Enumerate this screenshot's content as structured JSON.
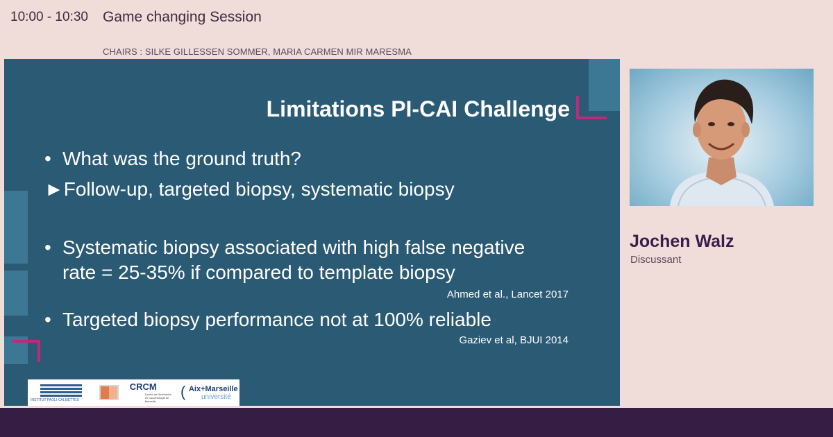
{
  "session": {
    "time": "10:00 - 10:30",
    "title": "Game changing Session",
    "chairs": "CHAIRS : SILKE GILLESSEN SOMMER, MARIA CARMEN MIR MARESMA"
  },
  "slide": {
    "title": "Limitations PI-CAI Challenge",
    "bullets": [
      {
        "marker": "•",
        "text": "What was the ground truth?"
      },
      {
        "marker": "►",
        "text": "Follow-up, targeted biopsy, systematic biopsy"
      },
      {
        "marker": "•",
        "text": "Systematic biopsy associated with high false negative"
      },
      {
        "marker": "",
        "text": "rate = 25-35% if compared to template biopsy"
      },
      {
        "marker": "•",
        "text": "Targeted biopsy performance not at 100% reliable"
      }
    ],
    "citations": [
      "Ahmed et al., Lancet 2017",
      "Gaziev et al, BJUI 2014"
    ],
    "logos": {
      "ipc": "INSTITUT PAOLI-CALMETTES",
      "crcm": "CRCM",
      "crcm_sub": "Centre de Recherche en Cancérologie de Marseille",
      "amu_1": "Aix+Marseille",
      "amu_2": "université"
    },
    "colors": {
      "background": "#2a5a74",
      "accent": "#c2287a"
    }
  },
  "speaker": {
    "name": "Jochen Walz",
    "role": "Discussant"
  },
  "colors": {
    "page_bg": "#f0dcd9",
    "footer": "#361d44"
  }
}
